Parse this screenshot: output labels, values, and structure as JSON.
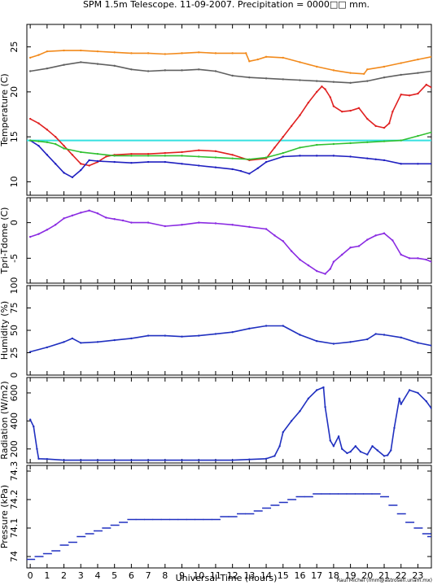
{
  "title": "SPM 1.5m Telescope. 11-09-2007. Precipitation = 0000□□ mm.",
  "credit": "Raul Michel (rmm@astrosen.unam.mx)",
  "xlabel": "Universal Time (hours)",
  "x_ticks": [
    "0",
    "1",
    "2",
    "3",
    "4",
    "5",
    "6",
    "7",
    "8",
    "9",
    "10",
    "11",
    "12",
    "13",
    "14",
    "15",
    "16",
    "17",
    "18",
    "19",
    "20",
    "21",
    "22",
    "23"
  ],
  "chart_data": [
    {
      "type": "line",
      "ylabel": "Temperature (C)",
      "ylim": [
        8.5,
        27.5
      ],
      "yticks": [
        10,
        15,
        20,
        25
      ],
      "xlim": [
        -0.2,
        23.8
      ],
      "hline": {
        "y": 14.6,
        "color": "#35e0e0"
      },
      "series": [
        {
          "color": "#f28a1c",
          "x": [
            0,
            0.5,
            1,
            2,
            3,
            4,
            5,
            6,
            7,
            8,
            9,
            10,
            11,
            12,
            12.8,
            13,
            13.5,
            14,
            15,
            16,
            17,
            18,
            19,
            19.8,
            20,
            21,
            22,
            23,
            23.8
          ],
          "y": [
            23.8,
            24.1,
            24.5,
            24.6,
            24.6,
            24.5,
            24.4,
            24.3,
            24.3,
            24.2,
            24.3,
            24.4,
            24.3,
            24.3,
            24.3,
            23.4,
            23.6,
            23.9,
            23.8,
            23.3,
            22.8,
            22.4,
            22.1,
            22.0,
            22.5,
            22.8,
            23.2,
            23.6,
            23.9
          ]
        },
        {
          "color": "#606060",
          "x": [
            0,
            1,
            2,
            3,
            4,
            5,
            6,
            7,
            8,
            9,
            10,
            11,
            12,
            13,
            14,
            15,
            16,
            17,
            18,
            19,
            20,
            21,
            22,
            23,
            23.8
          ],
          "y": [
            22.3,
            22.6,
            23.0,
            23.3,
            23.1,
            22.9,
            22.5,
            22.3,
            22.4,
            22.4,
            22.5,
            22.3,
            21.8,
            21.6,
            21.5,
            21.4,
            21.3,
            21.2,
            21.1,
            21.0,
            21.2,
            21.6,
            21.9,
            22.1,
            22.3
          ]
        },
        {
          "color": "#e02020",
          "x": [
            0,
            0.5,
            1,
            1.5,
            2,
            2.5,
            3,
            3.5,
            4,
            4.5,
            5,
            6,
            7,
            8,
            9,
            10,
            11,
            12,
            13,
            14,
            14.5,
            15,
            15.5,
            16,
            16.5,
            17,
            17.3,
            17.5,
            17.8,
            18,
            18.5,
            19,
            19.5,
            20,
            20.5,
            21,
            21.3,
            21.5,
            22,
            22.5,
            23,
            23.5,
            23.8
          ],
          "y": [
            17.0,
            16.5,
            15.8,
            15.0,
            14.0,
            13.0,
            12.0,
            11.8,
            12.2,
            12.8,
            13.0,
            13.1,
            13.1,
            13.2,
            13.3,
            13.5,
            13.4,
            13.0,
            12.4,
            12.6,
            13.8,
            15.0,
            16.2,
            17.4,
            18.8,
            20.0,
            20.6,
            20.3,
            19.4,
            18.4,
            17.8,
            17.9,
            18.2,
            17.0,
            16.2,
            16.0,
            16.5,
            17.8,
            19.7,
            19.6,
            19.8,
            20.8,
            20.5
          ]
        },
        {
          "color": "#2020c0",
          "x": [
            0,
            0.5,
            1,
            1.5,
            2,
            2.5,
            3,
            3.5,
            4,
            5,
            6,
            7,
            8,
            9,
            10,
            11,
            12,
            12.5,
            13,
            13.5,
            14,
            15,
            16,
            17,
            18,
            19,
            20,
            20.5,
            21,
            22,
            23,
            23.8
          ],
          "y": [
            14.6,
            14.0,
            13.0,
            12.0,
            11.0,
            10.5,
            11.3,
            12.4,
            12.3,
            12.2,
            12.1,
            12.2,
            12.2,
            12.0,
            11.8,
            11.6,
            11.4,
            11.2,
            10.9,
            11.5,
            12.2,
            12.8,
            12.9,
            12.9,
            12.9,
            12.8,
            12.6,
            12.5,
            12.4,
            12.0,
            12.0,
            12.0
          ]
        },
        {
          "color": "#30c030",
          "x": [
            0,
            0.5,
            1,
            1.5,
            2,
            3,
            4,
            5,
            6,
            7,
            8,
            9,
            10,
            11,
            12,
            13,
            14,
            15,
            16,
            17,
            18,
            19,
            20,
            21,
            22,
            23,
            23.8
          ],
          "y": [
            14.6,
            14.5,
            14.4,
            14.2,
            13.7,
            13.3,
            13.1,
            12.9,
            12.9,
            12.9,
            12.9,
            12.9,
            12.8,
            12.7,
            12.6,
            12.5,
            12.7,
            13.2,
            13.8,
            14.1,
            14.2,
            14.3,
            14.4,
            14.5,
            14.6,
            15.1,
            15.5
          ]
        }
      ]
    },
    {
      "type": "line",
      "ylabel": "Tpri-Tdome (C)",
      "ylim": [
        -8.5,
        3.5
      ],
      "yticks": [
        -5,
        0
      ],
      "xlim": [
        -0.2,
        23.8
      ],
      "series": [
        {
          "color": "#8a2be2",
          "x": [
            0,
            0.5,
            1,
            1.5,
            2,
            2.5,
            3,
            3.5,
            4,
            4.5,
            5,
            5.5,
            6,
            7,
            8,
            9,
            10,
            11,
            12,
            13,
            14,
            14.5,
            15,
            15.5,
            16,
            16.5,
            17,
            17.5,
            17.8,
            18,
            18.5,
            19,
            19.5,
            20,
            20.5,
            21,
            21.5,
            22,
            22.5,
            23,
            23.5,
            23.8
          ],
          "y": [
            -2.0,
            -1.6,
            -1.0,
            -0.3,
            0.6,
            1.0,
            1.4,
            1.7,
            1.3,
            0.7,
            0.5,
            0.3,
            0.0,
            0.0,
            -0.5,
            -0.3,
            0.0,
            -0.1,
            -0.3,
            -0.6,
            -0.9,
            -1.8,
            -2.6,
            -4.0,
            -5.2,
            -6.0,
            -6.8,
            -7.2,
            -6.5,
            -5.5,
            -4.5,
            -3.5,
            -3.3,
            -2.4,
            -1.8,
            -1.5,
            -2.5,
            -4.5,
            -5.0,
            -5.0,
            -5.2,
            -5.5
          ]
        }
      ]
    },
    {
      "type": "line",
      "ylabel": "Humidity (%)",
      "ylim": [
        0,
        100
      ],
      "yticks": [
        0,
        25,
        50,
        75,
        100
      ],
      "xlim": [
        -0.2,
        23.8
      ],
      "series": [
        {
          "color": "#2030c0",
          "x": [
            0,
            1,
            2,
            2.5,
            3,
            4,
            5,
            6,
            7,
            8,
            9,
            10,
            11,
            12,
            13,
            14,
            15,
            16,
            17,
            18,
            19,
            20,
            20.5,
            21,
            22,
            23,
            23.8
          ],
          "y": [
            26,
            31,
            37,
            41,
            36,
            37,
            39,
            41,
            44,
            44,
            43,
            44,
            46,
            48,
            52,
            55,
            55,
            45,
            38,
            35,
            37,
            40,
            46,
            45,
            42,
            36,
            33
          ]
        }
      ]
    },
    {
      "type": "line",
      "ylabel": "Radiation (W/m2)",
      "ylim": [
        100,
        710
      ],
      "yticks": [
        200,
        400,
        600
      ],
      "xlim": [
        -0.2,
        23.8
      ],
      "series": [
        {
          "color": "#2030c0",
          "x": [
            0,
            0.2,
            0.4,
            0.5,
            1,
            2,
            3,
            4,
            5,
            6,
            7,
            8,
            9,
            10,
            11,
            12,
            13,
            14,
            14.5,
            14.8,
            15,
            15.5,
            16,
            16.5,
            17,
            17.4,
            17.5,
            17.8,
            18,
            18.3,
            18.5,
            18.8,
            19,
            19.3,
            19.6,
            20,
            20.3,
            20.6,
            21,
            21.2,
            21.4,
            21.6,
            21.9,
            22,
            22.5,
            23,
            23.5,
            23.8
          ],
          "y": [
            410,
            360,
            200,
            130,
            128,
            120,
            120,
            120,
            120,
            120,
            120,
            120,
            120,
            120,
            120,
            120,
            125,
            130,
            150,
            220,
            320,
            400,
            470,
            560,
            620,
            640,
            500,
            260,
            220,
            290,
            200,
            170,
            180,
            220,
            180,
            160,
            220,
            190,
            150,
            155,
            190,
            350,
            560,
            520,
            620,
            600,
            540,
            490
          ]
        }
      ]
    },
    {
      "type": "scatter",
      "ylabel": "Pressure (kPa)",
      "ylim": [
        73.96,
        74.32
      ],
      "yticks": [
        74.0,
        74.1,
        74.2,
        74.3
      ],
      "xlim": [
        -0.2,
        23.8
      ],
      "series": [
        {
          "color": "#2030c0",
          "x": [
            0,
            0.5,
            1,
            1.5,
            2,
            2.5,
            3,
            3.5,
            4,
            4.5,
            5,
            5.5,
            6,
            6.5,
            7,
            7.5,
            8,
            8.5,
            9,
            9.5,
            10,
            10.5,
            11,
            11.5,
            12,
            12.5,
            13,
            13.5,
            14,
            14.5,
            15,
            15.5,
            16,
            16.5,
            17,
            17.5,
            18,
            18.5,
            19,
            19.5,
            20,
            20.5,
            21,
            21.5,
            22,
            22.5,
            23,
            23.5,
            23.8
          ],
          "y": [
            73.99,
            74.0,
            74.01,
            74.02,
            74.04,
            74.05,
            74.07,
            74.08,
            74.09,
            74.1,
            74.11,
            74.12,
            74.13,
            74.13,
            74.13,
            74.13,
            74.13,
            74.13,
            74.13,
            74.13,
            74.13,
            74.13,
            74.13,
            74.14,
            74.14,
            74.15,
            74.15,
            74.16,
            74.17,
            74.18,
            74.19,
            74.2,
            74.21,
            74.21,
            74.22,
            74.22,
            74.22,
            74.22,
            74.22,
            74.22,
            74.22,
            74.22,
            74.21,
            74.18,
            74.15,
            74.12,
            74.1,
            74.08,
            74.07
          ]
        }
      ]
    }
  ]
}
